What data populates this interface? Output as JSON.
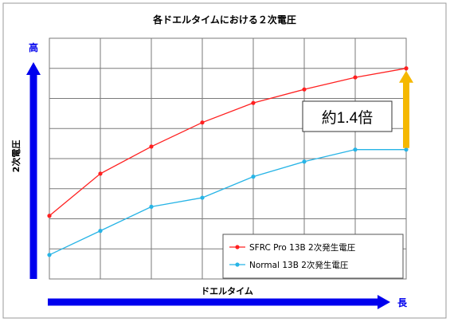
{
  "chart_data": {
    "type": "line",
    "title": "各ドエルタイムにおける２次電圧",
    "xlabel": "ドエルタイム",
    "ylabel": "2次電圧",
    "x_high_label": "長",
    "y_high_label": "高",
    "x": [
      1,
      2,
      3,
      4,
      5,
      6,
      7,
      8
    ],
    "xlim": [
      1,
      8
    ],
    "ylim": [
      0,
      8
    ],
    "grid": true,
    "legend_position": "bottom-right",
    "series": [
      {
        "name": "SFRC Pro 13B 2次発生電圧",
        "color": "#ff2020",
        "values": [
          2.1,
          3.5,
          4.4,
          5.2,
          5.85,
          6.3,
          6.7,
          7.0
        ]
      },
      {
        "name": "Normal 13B 2次発生電圧",
        "color": "#27b4e6",
        "values": [
          0.8,
          1.6,
          2.4,
          2.7,
          3.4,
          3.9,
          4.3,
          4.3
        ]
      }
    ],
    "annotation": {
      "text": "約1.4倍",
      "arrow_color": "#f5b800"
    },
    "axis_arrow_color": "#0000ee"
  }
}
